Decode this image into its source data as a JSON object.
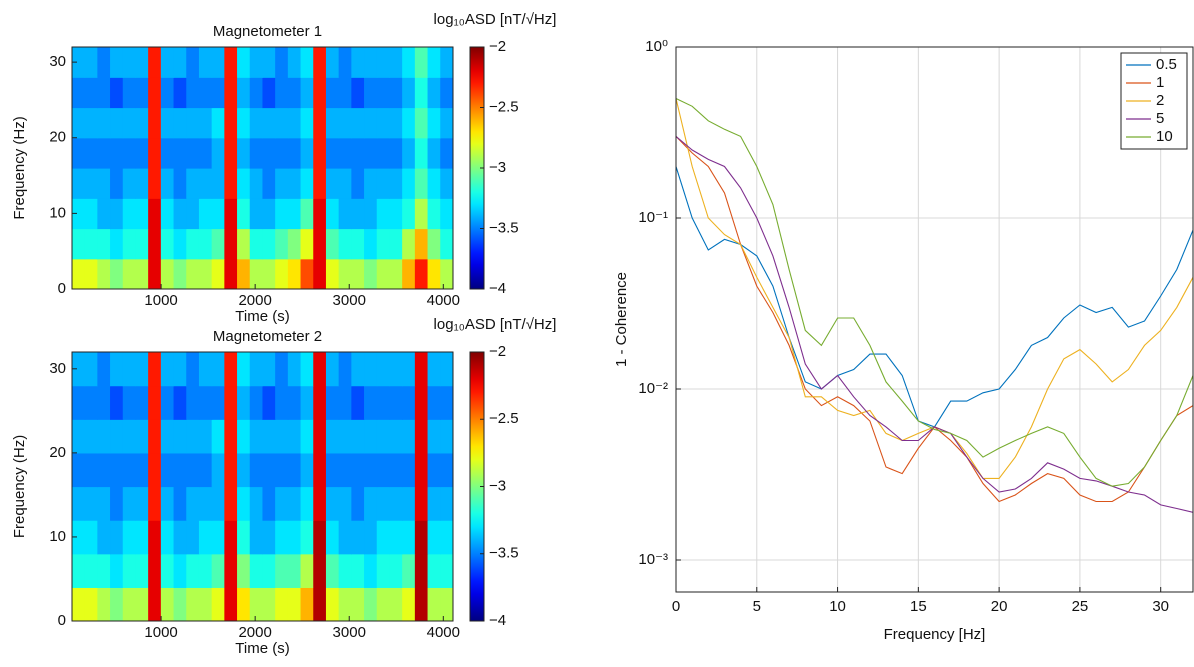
{
  "chart_data": [
    {
      "type": "heatmap",
      "title": "Magnetometer 1",
      "xlabel": "Time (s)",
      "ylabel": "Frequency (Hz)",
      "colorbar_label": "log₁₀ASD [nT/√Hz]",
      "colormap": "jet",
      "clim": [
        -4,
        -2
      ],
      "cticks": [
        {
          "value": -2,
          "label": "−2"
        },
        {
          "value": -2.5,
          "label": "−2.5"
        },
        {
          "value": -3,
          "label": "−3"
        },
        {
          "value": -3.5,
          "label": "−3.5"
        },
        {
          "value": -4,
          "label": "−4"
        }
      ],
      "xlim": [
        53,
        4103
      ],
      "ylim": [
        0,
        32
      ],
      "xticks": [
        1000,
        2000,
        3000,
        4000
      ],
      "yticks": [
        0,
        10,
        20,
        30
      ],
      "x": [
        120,
        255,
        390,
        525,
        660,
        795,
        930,
        1065,
        1200,
        1335,
        1470,
        1605,
        1740,
        1875,
        2010,
        2145,
        2280,
        2415,
        2550,
        2685,
        2820,
        2955,
        3090,
        3225,
        3360,
        3495,
        3630,
        3765,
        3900,
        4035
      ],
      "y": [
        2,
        6,
        10,
        14,
        18,
        22,
        26,
        30
      ],
      "z": [
        [
          -2.8,
          -2.8,
          -2.9,
          -3.0,
          -2.9,
          -2.9,
          -2.2,
          -2.9,
          -3.0,
          -2.9,
          -2.9,
          -2.8,
          -2.2,
          -2.6,
          -2.9,
          -2.9,
          -2.8,
          -2.7,
          -2.4,
          -2.2,
          -2.8,
          -2.9,
          -2.9,
          -3.0,
          -2.9,
          -2.9,
          -2.6,
          -2.3,
          -2.7,
          -2.9
        ],
        [
          -3.2,
          -3.2,
          -3.2,
          -3.3,
          -3.2,
          -3.2,
          -2.2,
          -3.2,
          -3.3,
          -3.2,
          -3.2,
          -3.1,
          -2.2,
          -2.9,
          -3.2,
          -3.2,
          -3.1,
          -3.0,
          -2.8,
          -2.2,
          -3.1,
          -3.2,
          -3.2,
          -3.3,
          -3.2,
          -3.2,
          -2.9,
          -2.6,
          -3.0,
          -3.2
        ],
        [
          -3.3,
          -3.3,
          -3.4,
          -3.4,
          -3.3,
          -3.3,
          -2.2,
          -3.3,
          -3.4,
          -3.4,
          -3.3,
          -3.3,
          -2.2,
          -3.2,
          -3.4,
          -3.4,
          -3.3,
          -3.3,
          -3.1,
          -2.2,
          -3.3,
          -3.4,
          -3.4,
          -3.4,
          -3.3,
          -3.3,
          -3.2,
          -2.9,
          -3.2,
          -3.3
        ],
        [
          -3.4,
          -3.4,
          -3.4,
          -3.5,
          -3.4,
          -3.4,
          -2.3,
          -3.4,
          -3.5,
          -3.4,
          -3.4,
          -3.4,
          -2.3,
          -3.3,
          -3.4,
          -3.5,
          -3.4,
          -3.4,
          -3.3,
          -2.3,
          -3.4,
          -3.4,
          -3.5,
          -3.4,
          -3.4,
          -3.4,
          -3.3,
          -3.1,
          -3.3,
          -3.4
        ],
        [
          -3.5,
          -3.5,
          -3.5,
          -3.5,
          -3.5,
          -3.5,
          -2.3,
          -3.5,
          -3.5,
          -3.5,
          -3.5,
          -3.4,
          -2.3,
          -3.4,
          -3.5,
          -3.5,
          -3.5,
          -3.5,
          -3.4,
          -2.3,
          -3.5,
          -3.5,
          -3.5,
          -3.5,
          -3.5,
          -3.5,
          -3.4,
          -3.2,
          -3.4,
          -3.5
        ],
        [
          -3.4,
          -3.4,
          -3.4,
          -3.4,
          -3.4,
          -3.4,
          -2.3,
          -3.4,
          -3.4,
          -3.4,
          -3.4,
          -3.3,
          -2.3,
          -3.3,
          -3.4,
          -3.4,
          -3.4,
          -3.4,
          -3.3,
          -2.3,
          -3.4,
          -3.4,
          -3.4,
          -3.4,
          -3.4,
          -3.4,
          -3.3,
          -3.1,
          -3.3,
          -3.4
        ],
        [
          -3.5,
          -3.5,
          -3.5,
          -3.6,
          -3.5,
          -3.5,
          -2.3,
          -3.5,
          -3.6,
          -3.5,
          -3.5,
          -3.5,
          -2.3,
          -3.4,
          -3.5,
          -3.6,
          -3.5,
          -3.5,
          -3.4,
          -2.3,
          -3.5,
          -3.5,
          -3.6,
          -3.5,
          -3.5,
          -3.5,
          -3.4,
          -3.2,
          -3.4,
          -3.5
        ],
        [
          -3.4,
          -3.4,
          -3.5,
          -3.4,
          -3.4,
          -3.4,
          -2.3,
          -3.4,
          -3.4,
          -3.5,
          -3.4,
          -3.4,
          -2.3,
          -3.3,
          -3.4,
          -3.4,
          -3.5,
          -3.4,
          -3.3,
          -2.3,
          -3.4,
          -3.5,
          -3.4,
          -3.4,
          -3.4,
          -3.4,
          -3.3,
          -3.1,
          -3.3,
          -3.4
        ]
      ]
    },
    {
      "type": "heatmap",
      "title": "Magnetometer 2",
      "xlabel": "Time (s)",
      "ylabel": "Frequency (Hz)",
      "colorbar_label": "log₁₀ASD [nT/√Hz]",
      "colormap": "jet",
      "clim": [
        -4,
        -2
      ],
      "cticks": [
        {
          "value": -2,
          "label": "−2"
        },
        {
          "value": -2.5,
          "label": "−2.5"
        },
        {
          "value": -3,
          "label": "−3"
        },
        {
          "value": -3.5,
          "label": "−3.5"
        },
        {
          "value": -4,
          "label": "−4"
        }
      ],
      "xlim": [
        53,
        4103
      ],
      "ylim": [
        0,
        32
      ],
      "xticks": [
        1000,
        2000,
        3000,
        4000
      ],
      "yticks": [
        0,
        10,
        20,
        30
      ],
      "x": [
        120,
        255,
        390,
        525,
        660,
        795,
        930,
        1065,
        1200,
        1335,
        1470,
        1605,
        1740,
        1875,
        2010,
        2145,
        2280,
        2415,
        2550,
        2685,
        2820,
        2955,
        3090,
        3225,
        3360,
        3495,
        3630,
        3765,
        3900,
        4035
      ],
      "y": [
        2,
        6,
        10,
        14,
        18,
        22,
        26,
        30
      ],
      "z": [
        [
          -2.8,
          -2.8,
          -2.9,
          -3.0,
          -2.9,
          -2.9,
          -2.2,
          -2.9,
          -3.0,
          -2.9,
          -2.9,
          -2.8,
          -2.2,
          -2.7,
          -2.9,
          -2.9,
          -2.8,
          -2.8,
          -2.6,
          -2.1,
          -2.8,
          -2.9,
          -2.9,
          -3.0,
          -2.9,
          -2.9,
          -2.8,
          -2.1,
          -2.9,
          -2.9
        ],
        [
          -3.2,
          -3.2,
          -3.2,
          -3.3,
          -3.2,
          -3.2,
          -2.2,
          -3.2,
          -3.3,
          -3.2,
          -3.2,
          -3.1,
          -2.2,
          -3.0,
          -3.2,
          -3.2,
          -3.1,
          -3.1,
          -2.9,
          -2.1,
          -3.1,
          -3.2,
          -3.2,
          -3.3,
          -3.2,
          -3.2,
          -3.1,
          -2.1,
          -3.2,
          -3.2
        ],
        [
          -3.3,
          -3.3,
          -3.4,
          -3.4,
          -3.3,
          -3.3,
          -2.2,
          -3.3,
          -3.4,
          -3.4,
          -3.3,
          -3.3,
          -2.2,
          -3.2,
          -3.4,
          -3.4,
          -3.3,
          -3.3,
          -3.2,
          -2.1,
          -3.3,
          -3.4,
          -3.4,
          -3.4,
          -3.3,
          -3.3,
          -3.3,
          -2.1,
          -3.3,
          -3.3
        ],
        [
          -3.4,
          -3.4,
          -3.4,
          -3.5,
          -3.4,
          -3.4,
          -2.3,
          -3.4,
          -3.5,
          -3.4,
          -3.4,
          -3.4,
          -2.3,
          -3.3,
          -3.4,
          -3.5,
          -3.4,
          -3.4,
          -3.3,
          -2.2,
          -3.4,
          -3.4,
          -3.5,
          -3.4,
          -3.4,
          -3.4,
          -3.4,
          -2.2,
          -3.4,
          -3.4
        ],
        [
          -3.5,
          -3.5,
          -3.5,
          -3.5,
          -3.5,
          -3.5,
          -2.3,
          -3.5,
          -3.5,
          -3.5,
          -3.5,
          -3.4,
          -2.3,
          -3.4,
          -3.5,
          -3.5,
          -3.5,
          -3.5,
          -3.4,
          -2.2,
          -3.5,
          -3.5,
          -3.5,
          -3.5,
          -3.5,
          -3.5,
          -3.5,
          -2.2,
          -3.5,
          -3.5
        ],
        [
          -3.4,
          -3.4,
          -3.4,
          -3.4,
          -3.4,
          -3.4,
          -2.3,
          -3.4,
          -3.4,
          -3.4,
          -3.4,
          -3.3,
          -2.3,
          -3.3,
          -3.4,
          -3.4,
          -3.4,
          -3.4,
          -3.3,
          -2.2,
          -3.4,
          -3.4,
          -3.4,
          -3.4,
          -3.4,
          -3.4,
          -3.4,
          -2.2,
          -3.4,
          -3.4
        ],
        [
          -3.5,
          -3.5,
          -3.5,
          -3.6,
          -3.5,
          -3.5,
          -2.3,
          -3.5,
          -3.6,
          -3.5,
          -3.5,
          -3.5,
          -2.3,
          -3.4,
          -3.5,
          -3.6,
          -3.5,
          -3.5,
          -3.4,
          -2.2,
          -3.5,
          -3.5,
          -3.6,
          -3.5,
          -3.5,
          -3.5,
          -3.5,
          -2.2,
          -3.5,
          -3.5
        ],
        [
          -3.4,
          -3.4,
          -3.5,
          -3.4,
          -3.4,
          -3.4,
          -2.3,
          -3.4,
          -3.4,
          -3.5,
          -3.4,
          -3.4,
          -2.3,
          -3.3,
          -3.4,
          -3.4,
          -3.5,
          -3.4,
          -3.3,
          -2.2,
          -3.4,
          -3.5,
          -3.4,
          -3.4,
          -3.4,
          -3.4,
          -3.4,
          -2.2,
          -3.4,
          -3.4
        ]
      ]
    },
    {
      "type": "line",
      "xlabel": "Frequency [Hz]",
      "ylabel": "1 - Coherence",
      "log_y": true,
      "grid": true,
      "legend": "top-right",
      "xlim": [
        0,
        32
      ],
      "ylim": [
        0.00065,
        1
      ],
      "xticks": [
        0,
        5,
        10,
        15,
        20,
        25,
        30
      ],
      "yticks": [
        {
          "value": 0.001,
          "label": "10⁻³"
        },
        {
          "value": 0.01,
          "label": "10⁻²"
        },
        {
          "value": 0.1,
          "label": "10⁻¹"
        },
        {
          "value": 1,
          "label": "10⁰"
        }
      ],
      "x": [
        0,
        1,
        2,
        3,
        4,
        5,
        6,
        7,
        8,
        9,
        10,
        11,
        12,
        13,
        14,
        15,
        16,
        17,
        18,
        19,
        20,
        21,
        22,
        23,
        24,
        25,
        26,
        27,
        28,
        29,
        30,
        31,
        32
      ],
      "series": [
        {
          "name": "0.5",
          "color": "#0072bd",
          "values": [
            0.2,
            0.1,
            0.065,
            0.075,
            0.07,
            0.06,
            0.04,
            0.02,
            0.011,
            0.01,
            0.012,
            0.013,
            0.016,
            0.016,
            0.012,
            0.0065,
            0.006,
            0.0085,
            0.0085,
            0.0095,
            0.01,
            0.013,
            0.018,
            0.02,
            0.026,
            0.031,
            0.028,
            0.03,
            0.023,
            0.025,
            0.035,
            0.05,
            0.085
          ]
        },
        {
          "name": "1",
          "color": "#d95319",
          "values": [
            0.3,
            0.24,
            0.2,
            0.14,
            0.07,
            0.04,
            0.028,
            0.018,
            0.01,
            0.008,
            0.009,
            0.008,
            0.0065,
            0.0035,
            0.0032,
            0.0045,
            0.006,
            0.005,
            0.004,
            0.0028,
            0.0022,
            0.0024,
            0.0028,
            0.0032,
            0.003,
            0.0024,
            0.0022,
            0.0022,
            0.0025,
            0.0035,
            0.005,
            0.007,
            0.008
          ]
        },
        {
          "name": "2",
          "color": "#edb120",
          "values": [
            0.5,
            0.2,
            0.1,
            0.08,
            0.07,
            0.045,
            0.03,
            0.02,
            0.009,
            0.009,
            0.0075,
            0.007,
            0.0075,
            0.0055,
            0.005,
            0.0055,
            0.006,
            0.0055,
            0.0042,
            0.003,
            0.003,
            0.004,
            0.006,
            0.01,
            0.015,
            0.017,
            0.014,
            0.011,
            0.013,
            0.018,
            0.022,
            0.03,
            0.045
          ]
        },
        {
          "name": "5",
          "color": "#7e2f8e",
          "values": [
            0.3,
            0.25,
            0.22,
            0.2,
            0.15,
            0.1,
            0.06,
            0.03,
            0.014,
            0.01,
            0.012,
            0.009,
            0.007,
            0.006,
            0.005,
            0.005,
            0.006,
            0.0055,
            0.004,
            0.003,
            0.0025,
            0.0026,
            0.003,
            0.0037,
            0.0034,
            0.003,
            0.0029,
            0.0027,
            0.0025,
            0.0024,
            0.0021,
            0.002,
            0.0019
          ]
        },
        {
          "name": "10",
          "color": "#77ac30",
          "values": [
            0.5,
            0.45,
            0.37,
            0.33,
            0.3,
            0.2,
            0.12,
            0.05,
            0.022,
            0.018,
            0.026,
            0.026,
            0.018,
            0.011,
            0.0085,
            0.0065,
            0.0058,
            0.0055,
            0.005,
            0.004,
            0.0045,
            0.005,
            0.0055,
            0.006,
            0.0055,
            0.004,
            0.003,
            0.0027,
            0.0028,
            0.0035,
            0.005,
            0.007,
            0.012
          ]
        }
      ]
    }
  ]
}
